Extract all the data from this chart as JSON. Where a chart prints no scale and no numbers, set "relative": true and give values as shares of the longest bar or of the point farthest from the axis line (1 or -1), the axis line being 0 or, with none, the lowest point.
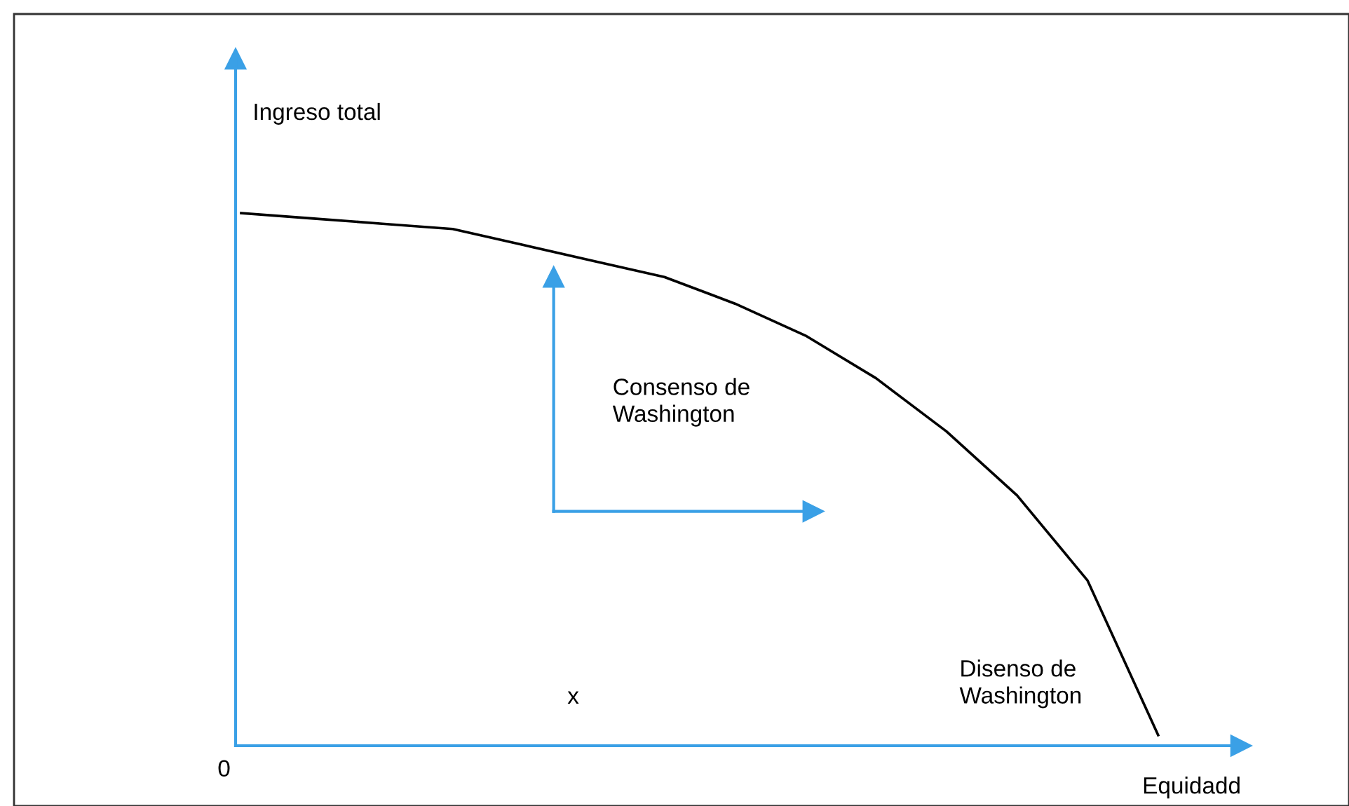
{
  "chart_data": {
    "type": "line",
    "relative": true,
    "xlabel": "Equidadd",
    "ylabel": "Ingreso total",
    "categories": [
      null,
      null,
      null,
      null,
      null,
      null,
      null,
      null,
      null,
      null,
      null,
      null,
      null,
      null
    ],
    "series": [
      {
        "color": "#000000",
        "values": [
          1.0,
          0.99,
          0.98,
          0.97,
          0.94,
          0.91,
          0.88,
          0.83,
          0.77,
          0.69,
          0.59,
          0.47,
          0.31,
          0.02
        ]
      }
    ],
    "annotations": [
      "0",
      "x",
      "Consenso de\nWashington",
      "Disenso de\nWashington"
    ],
    "grid": false,
    "legend": false,
    "marker": "none",
    "line_style": "solid"
  }
}
